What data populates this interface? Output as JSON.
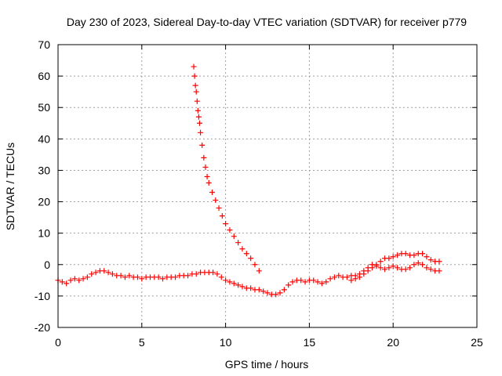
{
  "chart_data": {
    "type": "scatter",
    "title": "Day 230 of 2023, Sidereal Day-to-day VTEC variation (SDTVAR) for receiver p779",
    "xlabel": "GPS time / hours",
    "ylabel": "SDTVAR / TECUs",
    "xlim": [
      0,
      25
    ],
    "ylim": [
      -20,
      70
    ],
    "x_ticks": [
      0,
      5,
      10,
      15,
      20,
      25
    ],
    "y_ticks": [
      -20,
      -10,
      0,
      10,
      20,
      30,
      40,
      50,
      60,
      70
    ],
    "grid": true,
    "marker": "+",
    "color": "#ff0000",
    "series": [
      {
        "name": "main-track",
        "points": [
          [
            0.0,
            -5
          ],
          [
            0.25,
            -5.5
          ],
          [
            0.5,
            -6
          ],
          [
            0.75,
            -5
          ],
          [
            1.0,
            -4.5
          ],
          [
            1.25,
            -5
          ],
          [
            1.5,
            -4.5
          ],
          [
            1.75,
            -4
          ],
          [
            2.0,
            -3
          ],
          [
            2.25,
            -2.5
          ],
          [
            2.5,
            -2
          ],
          [
            2.75,
            -2
          ],
          [
            3.0,
            -2.5
          ],
          [
            3.25,
            -3
          ],
          [
            3.5,
            -3.5
          ],
          [
            3.75,
            -3.5
          ],
          [
            4.0,
            -4
          ],
          [
            4.25,
            -3.5
          ],
          [
            4.5,
            -4
          ],
          [
            4.75,
            -4
          ],
          [
            5.0,
            -4.5
          ],
          [
            5.25,
            -4
          ],
          [
            5.5,
            -4
          ],
          [
            5.75,
            -4
          ],
          [
            6.0,
            -4
          ],
          [
            6.25,
            -4.5
          ],
          [
            6.5,
            -4
          ],
          [
            6.75,
            -4
          ],
          [
            7.0,
            -4
          ],
          [
            7.25,
            -3.5
          ],
          [
            7.5,
            -3.5
          ],
          [
            7.75,
            -3.5
          ],
          [
            8.0,
            -3
          ],
          [
            8.25,
            -3
          ],
          [
            8.5,
            -2.5
          ],
          [
            8.75,
            -2.5
          ],
          [
            9.0,
            -2.5
          ],
          [
            9.25,
            -2.5
          ],
          [
            9.5,
            -3
          ],
          [
            9.75,
            -4
          ],
          [
            10.0,
            -5
          ],
          [
            10.25,
            -5.5
          ],
          [
            10.5,
            -6
          ],
          [
            10.75,
            -6.5
          ],
          [
            11.0,
            -7
          ],
          [
            11.25,
            -7.5
          ],
          [
            11.5,
            -7.5
          ],
          [
            11.75,
            -8
          ],
          [
            12.0,
            -8
          ],
          [
            12.25,
            -8.5
          ],
          [
            12.5,
            -9
          ],
          [
            12.75,
            -9.5
          ],
          [
            13.0,
            -9.5
          ],
          [
            13.25,
            -9
          ],
          [
            13.5,
            -8
          ],
          [
            13.75,
            -6.5
          ],
          [
            14.0,
            -5.5
          ],
          [
            14.25,
            -5
          ],
          [
            14.5,
            -5
          ],
          [
            14.75,
            -5.5
          ],
          [
            15.0,
            -5
          ],
          [
            15.25,
            -5
          ],
          [
            15.5,
            -5.5
          ],
          [
            15.75,
            -6
          ],
          [
            16.0,
            -5.5
          ],
          [
            16.25,
            -4.5
          ],
          [
            16.5,
            -4
          ],
          [
            16.75,
            -3.5
          ],
          [
            17.0,
            -4
          ],
          [
            17.25,
            -4
          ],
          [
            17.5,
            -3.5
          ],
          [
            17.75,
            -3.5
          ],
          [
            18.0,
            -4
          ],
          [
            18.25,
            -3
          ],
          [
            18.5,
            -2
          ],
          [
            18.75,
            -1
          ],
          [
            19.0,
            0
          ],
          [
            19.25,
            1
          ],
          [
            19.5,
            2
          ],
          [
            19.75,
            2
          ],
          [
            20.0,
            2.5
          ],
          [
            20.25,
            3
          ],
          [
            20.5,
            3.5
          ],
          [
            20.75,
            3.5
          ],
          [
            21.0,
            3
          ],
          [
            21.25,
            3
          ],
          [
            21.5,
            3.5
          ],
          [
            21.75,
            3.5
          ],
          [
            22.0,
            2.5
          ],
          [
            22.25,
            1.5
          ],
          [
            22.5,
            1
          ],
          [
            22.75,
            1
          ]
        ]
      },
      {
        "name": "late-band",
        "points": [
          [
            17.5,
            -5
          ],
          [
            17.75,
            -4.5
          ],
          [
            18.0,
            -3
          ],
          [
            18.25,
            -2
          ],
          [
            18.5,
            -1
          ],
          [
            18.75,
            0
          ],
          [
            19.0,
            -0.5
          ],
          [
            19.25,
            -1
          ],
          [
            19.5,
            -1.5
          ],
          [
            19.75,
            -1
          ],
          [
            20.0,
            -0.5
          ],
          [
            20.25,
            -1
          ],
          [
            20.5,
            -1.5
          ],
          [
            20.75,
            -1.5
          ],
          [
            21.0,
            -1
          ],
          [
            21.25,
            0
          ],
          [
            21.5,
            0.5
          ],
          [
            21.75,
            0
          ],
          [
            22.0,
            -1
          ],
          [
            22.25,
            -1.5
          ],
          [
            22.5,
            -2
          ],
          [
            22.75,
            -2
          ]
        ]
      },
      {
        "name": "descending-branch",
        "points": [
          [
            8.1,
            63
          ],
          [
            8.15,
            60
          ],
          [
            8.2,
            57
          ],
          [
            8.25,
            55
          ],
          [
            8.3,
            52
          ],
          [
            8.35,
            49
          ],
          [
            8.4,
            47
          ],
          [
            8.45,
            45
          ],
          [
            8.5,
            42
          ],
          [
            8.6,
            38
          ],
          [
            8.7,
            34
          ],
          [
            8.8,
            31
          ],
          [
            8.9,
            28
          ],
          [
            9.0,
            26
          ],
          [
            9.2,
            23
          ],
          [
            9.4,
            20.5
          ],
          [
            9.6,
            18
          ],
          [
            9.8,
            15.5
          ],
          [
            10.0,
            13
          ],
          [
            10.25,
            11
          ],
          [
            10.5,
            9
          ],
          [
            10.75,
            7
          ],
          [
            11.0,
            5
          ],
          [
            11.25,
            3.5
          ],
          [
            11.5,
            2
          ],
          [
            11.75,
            0
          ],
          [
            12.0,
            -2
          ]
        ]
      }
    ]
  }
}
